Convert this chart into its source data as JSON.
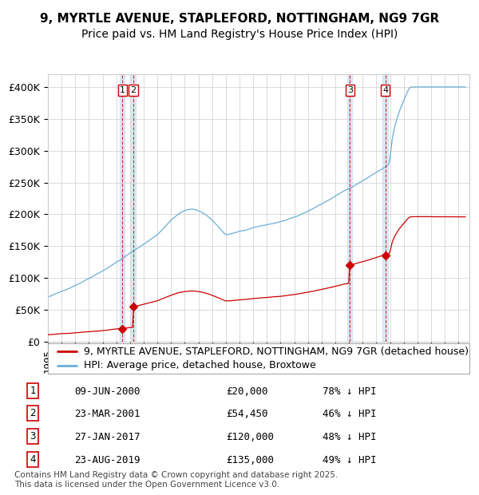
{
  "title1": "9, MYRTLE AVENUE, STAPLEFORD, NOTTINGHAM, NG9 7GR",
  "title2": "Price paid vs. HM Land Registry's House Price Index (HPI)",
  "ylim": [
    0,
    420000
  ],
  "yticks": [
    0,
    50000,
    100000,
    150000,
    200000,
    250000,
    300000,
    350000,
    400000
  ],
  "ytick_labels": [
    "£0",
    "£50K",
    "£100K",
    "£150K",
    "£200K",
    "£250K",
    "£300K",
    "£350K",
    "£400K"
  ],
  "hpi_color": "#6baed6",
  "price_color": "#cc0000",
  "marker_color": "#cc0000",
  "vline_color": "#cc0000",
  "vspan_color": "#c6dbef",
  "background_color": "#ffffff",
  "grid_color": "#cccccc",
  "legend_label_price": "9, MYRTLE AVENUE, STAPLEFORD, NOTTINGHAM, NG9 7GR (detached house)",
  "legend_label_hpi": "HPI: Average price, detached house, Broxtowe",
  "transactions": [
    {
      "num": 1,
      "date": "09-JUN-2000",
      "x": 2000.44,
      "price": 20000,
      "pct": "78% ↓ HPI"
    },
    {
      "num": 2,
      "date": "23-MAR-2001",
      "x": 2001.23,
      "price": 54450,
      "pct": "46% ↓ HPI"
    },
    {
      "num": 3,
      "date": "27-JAN-2017",
      "x": 2017.07,
      "price": 120000,
      "pct": "48% ↓ HPI"
    },
    {
      "num": 4,
      "date": "23-AUG-2019",
      "x": 2019.65,
      "price": 135000,
      "pct": "49% ↓ HPI"
    }
  ],
  "footer": "Contains HM Land Registry data © Crown copyright and database right 2025.\nThis data is licensed under the Open Government Licence v3.0.",
  "title_fontsize": 11,
  "subtitle_fontsize": 10,
  "tick_fontsize": 9,
  "legend_fontsize": 9,
  "footer_fontsize": 7.5
}
